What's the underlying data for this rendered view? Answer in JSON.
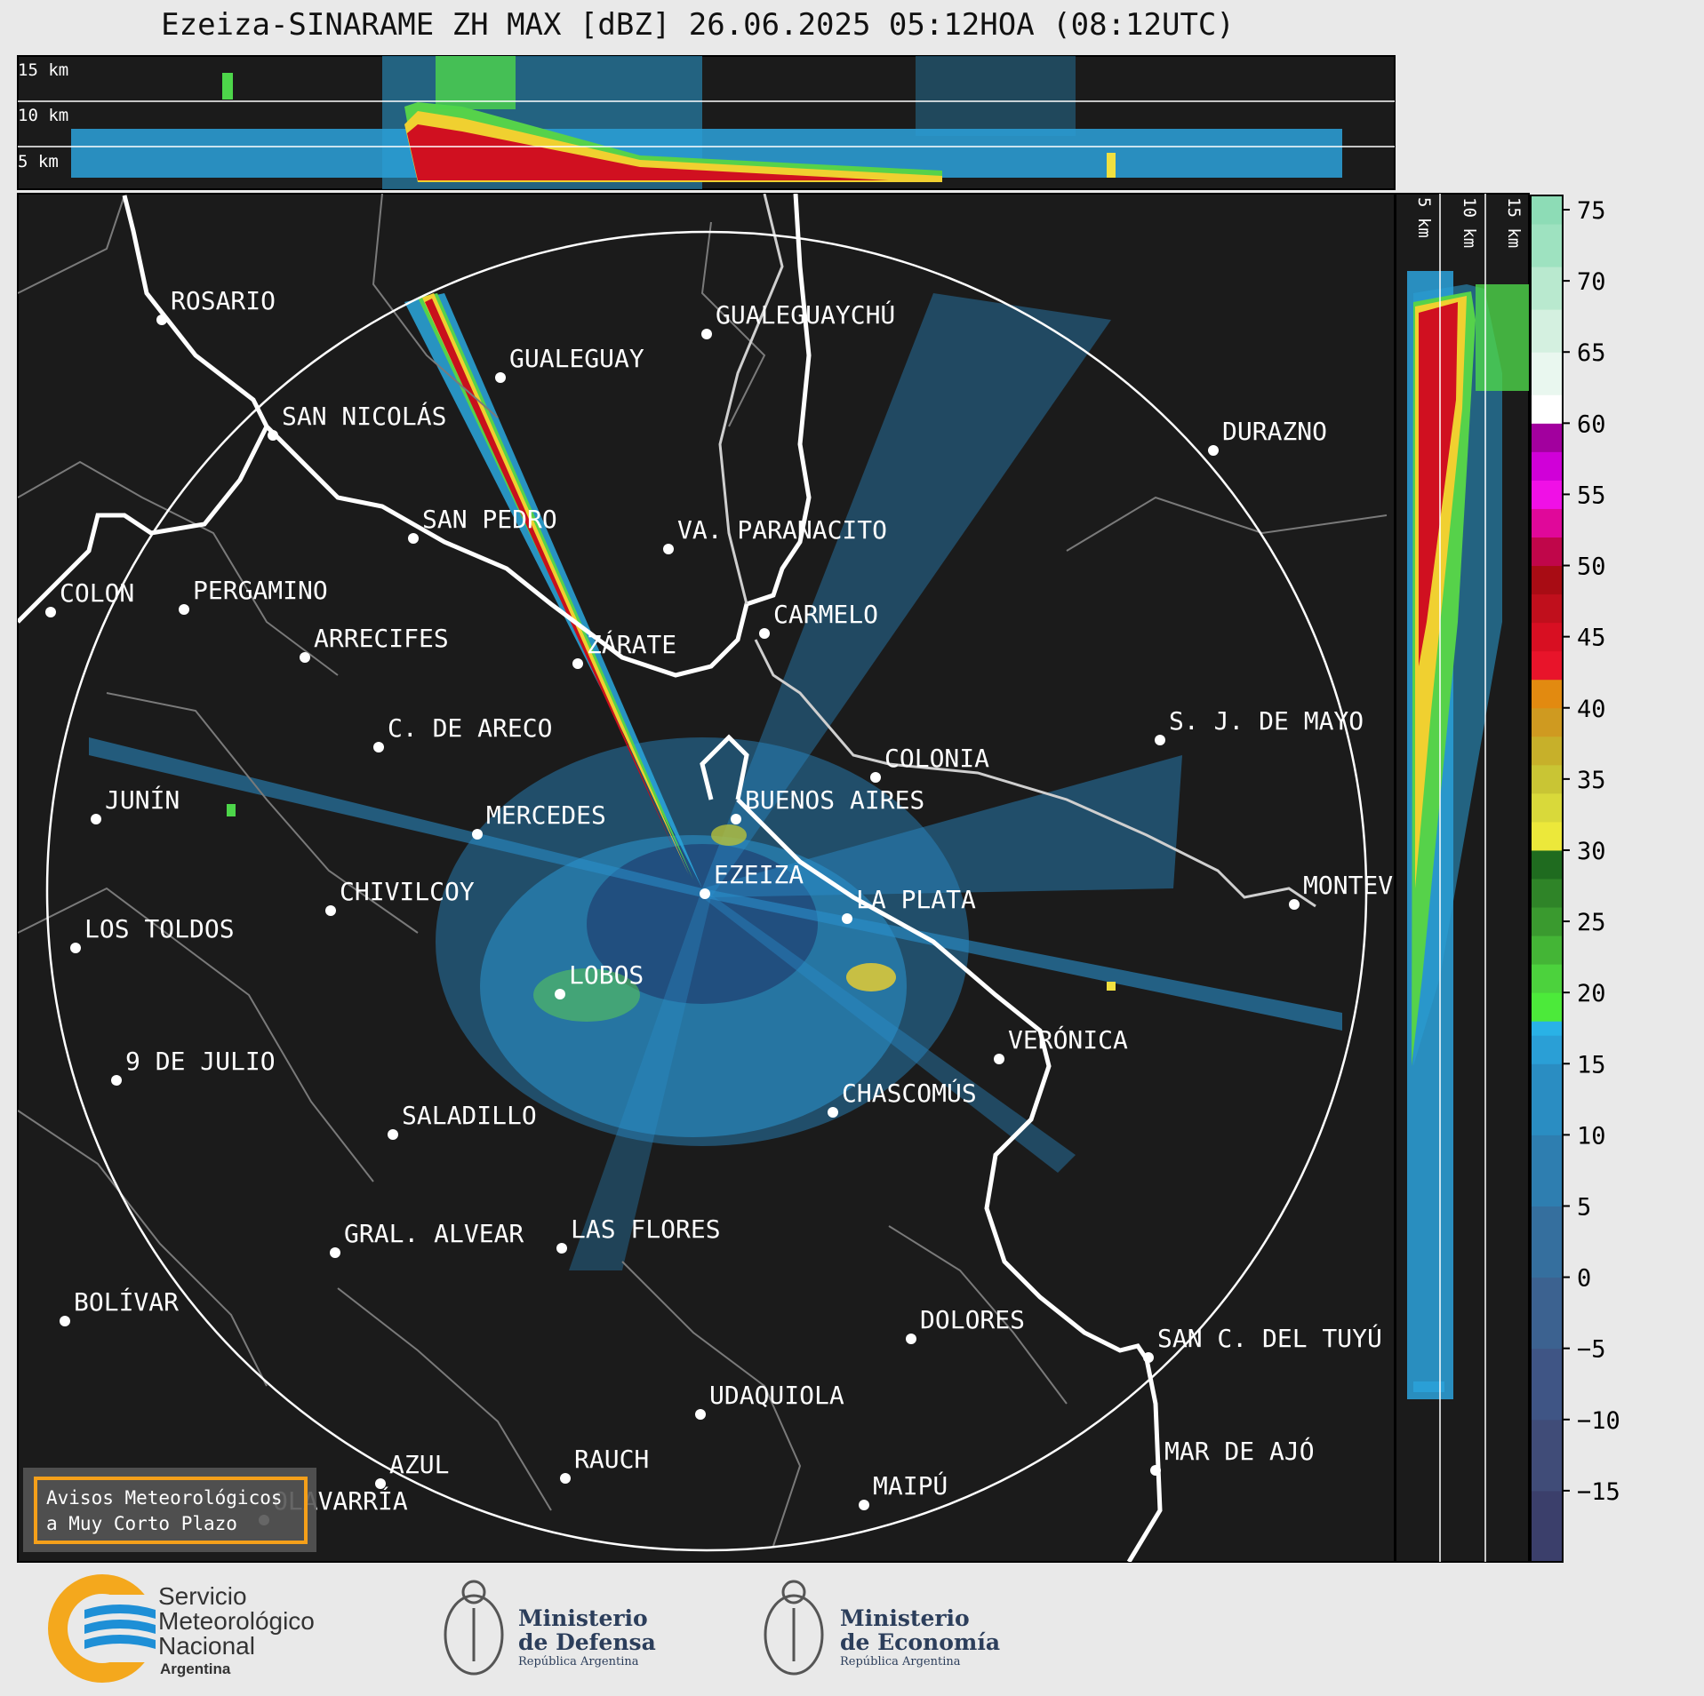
{
  "header": {
    "title": "Ezeiza-SINARAME ZH MAX [dBZ] 26.06.2025 05:12HOA (08:12UTC)"
  },
  "top_panel": {
    "height_labels": [
      "15 km",
      "10 km",
      "5 km"
    ]
  },
  "side_panel": {
    "height_labels": [
      "5 km",
      "10 km",
      "15 km"
    ]
  },
  "colorbar": {
    "unit": "dBZ",
    "tick_labels": [
      "75",
      "70",
      "65",
      "60",
      "55",
      "50",
      "45",
      "40",
      "35",
      "30",
      "25",
      "20",
      "15",
      "10",
      "5",
      "0",
      "−5",
      "−10",
      "−15"
    ],
    "ticks": [
      75,
      70,
      65,
      60,
      55,
      50,
      45,
      40,
      35,
      30,
      25,
      20,
      15,
      10,
      5,
      0,
      -5,
      -10,
      -15
    ],
    "min": -20,
    "max": 76
  },
  "cities": [
    {
      "name": "ROSARIO"
    },
    {
      "name": "GUALEGUAYCHÚ"
    },
    {
      "name": "GUALEGUAY"
    },
    {
      "name": "SAN NICOLÁS"
    },
    {
      "name": "DURAZNO"
    },
    {
      "name": "SAN PEDRO"
    },
    {
      "name": "VA. PARANACITO"
    },
    {
      "name": "COLON"
    },
    {
      "name": "PERGAMINO"
    },
    {
      "name": "CARMELO"
    },
    {
      "name": "ARRECIFES"
    },
    {
      "name": "ZÁRATE"
    },
    {
      "name": "S. J. DE MAYO"
    },
    {
      "name": "C. DE ARECO"
    },
    {
      "name": "COLONIA"
    },
    {
      "name": "JUNÍN"
    },
    {
      "name": "MERCEDES"
    },
    {
      "name": "BUENOS AIRES"
    },
    {
      "name": "EZEIZA"
    },
    {
      "name": "MONTEV"
    },
    {
      "name": "CHIVILCOY"
    },
    {
      "name": "LA PLATA"
    },
    {
      "name": "LOS TOLDOS"
    },
    {
      "name": "LOBOS"
    },
    {
      "name": "VERÓNICA"
    },
    {
      "name": "9 DE JULIO"
    },
    {
      "name": "CHASCOMÚS"
    },
    {
      "name": "SALADILLO"
    },
    {
      "name": "GRAL. ALVEAR"
    },
    {
      "name": "LAS FLORES"
    },
    {
      "name": "BOLÍVAR"
    },
    {
      "name": "DOLORES"
    },
    {
      "name": "SAN C. DEL TUYÚ"
    },
    {
      "name": "UDAQUIOLA"
    },
    {
      "name": "MAR DE AJÓ"
    },
    {
      "name": "AZUL"
    },
    {
      "name": "RAUCH"
    },
    {
      "name": "MAIPÚ"
    },
    {
      "name": "OLAVARRÍA"
    }
  ],
  "warning_box": {
    "line1": "Avisos Meteorológicos",
    "line2": "a Muy Corto Plazo"
  },
  "footer": {
    "smn": {
      "line1": "Servicio",
      "line2": "Meteorológico",
      "line3": "Nacional",
      "line4": "Argentina"
    },
    "defensa": {
      "line1": "Ministerio",
      "line2": "de Defensa",
      "line3": "República Argentina"
    },
    "economia": {
      "line1": "Ministerio",
      "line2": "de Economía",
      "line3": "República Argentina"
    }
  },
  "colors": {
    "map_background": "#1b1b1b",
    "page_background": "#e9e9e9",
    "warning_border": "#f5a01a",
    "smn_blue": "#1e8fd6",
    "smn_orange": "#f4a81d"
  }
}
